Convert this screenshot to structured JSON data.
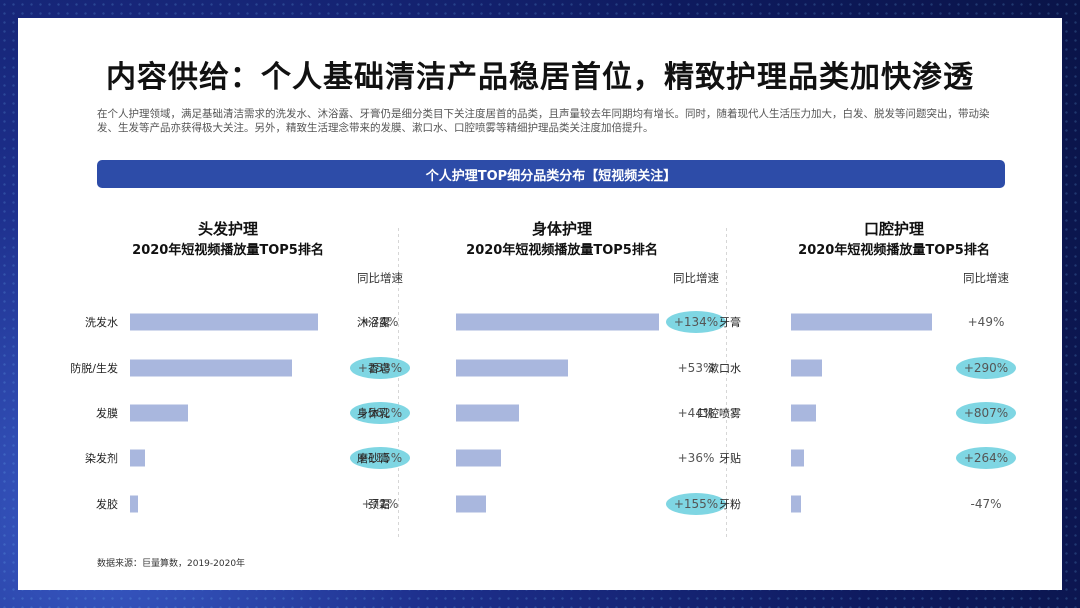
{
  "title": "内容供给：个人基础清洁产品稳居首位，精致护理品类加快渗透",
  "description": "在个人护理领域，满足基础清洁需求的洗发水、沐浴露、牙膏仍是细分类目下关注度居首的品类，且声量较去年同期均有增长。同时，随着现代人生活压力加大，白发、脱发等问题突出，带动染发、生发等产品亦获得极大关注。另外，精致生活理念带来的发膜、漱口水、口腔喷雾等精细护理品类关注度加倍提升。",
  "banner": "个人护理TOP细分品类分布【短视频关注】",
  "source": "数据来源：巨量算数，2019-2020年",
  "colors": {
    "bar": "#a9b7de",
    "highlight": "#7fd6e3",
    "banner": "#2d4ca8"
  },
  "chart_data": [
    {
      "type": "bar",
      "title": "头发护理",
      "subtitle": "2020年短视频播放量TOP5排名",
      "growth_header": "同比增速",
      "categories": [
        "洗发水",
        "防脱/生发",
        "发膜",
        "染发剂",
        "发胶"
      ],
      "values": [
        100,
        86,
        31,
        8,
        4
      ],
      "growth": [
        "+74%",
        "+158%",
        "+562%",
        "+115%",
        "+71%"
      ],
      "highlight": [
        false,
        true,
        true,
        true,
        false
      ]
    },
    {
      "type": "bar",
      "title": "身体护理",
      "subtitle": "2020年短视频播放量TOP5排名",
      "growth_header": "同比增速",
      "categories": [
        "沐浴露",
        "香皂",
        "身体乳",
        "磨砂膏",
        "颈霜"
      ],
      "values": [
        100,
        55,
        31,
        22,
        15
      ],
      "growth": [
        "+134%",
        "+53%",
        "+44%",
        "+36%",
        "+155%"
      ],
      "highlight": [
        true,
        false,
        false,
        false,
        true
      ]
    },
    {
      "type": "bar",
      "title": "口腔护理",
      "subtitle": "2020年短视频播放量TOP5排名",
      "growth_header": "同比增速",
      "categories": [
        "牙膏",
        "漱口水",
        "口腔喷雾",
        "牙贴",
        "牙粉"
      ],
      "values": [
        100,
        22,
        18,
        9,
        7
      ],
      "growth": [
        "+49%",
        "+290%",
        "+807%",
        "+264%",
        "-47%"
      ],
      "highlight": [
        false,
        true,
        true,
        true,
        false
      ]
    }
  ]
}
